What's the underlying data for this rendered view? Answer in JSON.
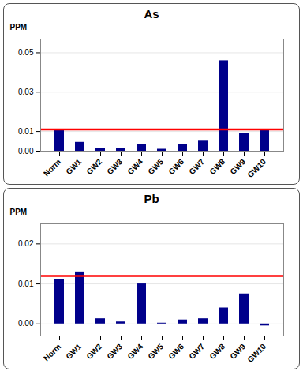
{
  "chart_data": [
    {
      "type": "bar",
      "title": "As",
      "categories": [
        "Norm",
        "GW1",
        "GW2",
        "GW3",
        "GW4",
        "GW5",
        "GW6",
        "GW7",
        "GW8",
        "GW9",
        "GW10"
      ],
      "values": [
        0.0105,
        0.0045,
        0.0015,
        0.0013,
        0.0035,
        0.001,
        0.0035,
        0.0055,
        0.046,
        0.009,
        0.011
      ],
      "color": "#00008B",
      "ylabel": "PPM",
      "reference_line": {
        "y": 0.011,
        "color": "#FF0000"
      },
      "ylim": [
        0,
        0.057
      ],
      "yticks": [
        {
          "value": 0,
          "label": "0.00"
        },
        0.01,
        0.03,
        0.05
      ],
      "grid": true
    },
    {
      "type": "bar",
      "title": "Pb",
      "categories": [
        "Norm",
        "GW1",
        "GW2",
        "GW3",
        "GW4",
        "GW5",
        "GW6",
        "GW7",
        "GW8",
        "GW9",
        "GW10"
      ],
      "values": [
        0.011,
        0.013,
        0.0013,
        0.0005,
        0.01,
        0.0002,
        0.001,
        0.0013,
        0.004,
        0.0075,
        -0.0005
      ],
      "color": "#00008B",
      "ylabel": "PPM",
      "reference_line": {
        "y": 0.012,
        "color": "#FF0000"
      },
      "ylim": [
        -0.003,
        0.025
      ],
      "yticks": [
        {
          "value": 0,
          "label": "0.00"
        },
        0.01,
        0.02
      ],
      "grid": true
    }
  ]
}
